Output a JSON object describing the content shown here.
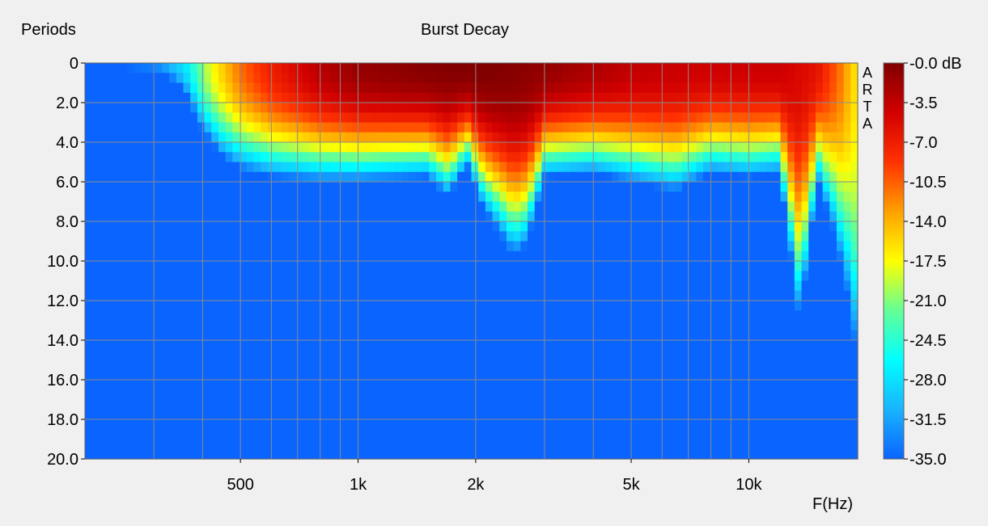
{
  "chart_data": {
    "type": "heatmap",
    "title": "Burst Decay",
    "ylabel": "Periods",
    "xlabel": "F(Hz)",
    "watermark": "ARTA",
    "x_scale": "log",
    "xlim": [
      200,
      19000
    ],
    "ylim": [
      0,
      20
    ],
    "x_ticks": [
      {
        "value": 500,
        "label": "500"
      },
      {
        "value": 1000,
        "label": "1k"
      },
      {
        "value": 2000,
        "label": "2k"
      },
      {
        "value": 5000,
        "label": "5k"
      },
      {
        "value": 10000,
        "label": "10k"
      }
    ],
    "y_ticks": [
      {
        "value": 0,
        "label": "0"
      },
      {
        "value": 2,
        "label": "2.0"
      },
      {
        "value": 4,
        "label": "4.0"
      },
      {
        "value": 6,
        "label": "6.0"
      },
      {
        "value": 8,
        "label": "8.0"
      },
      {
        "value": 10,
        "label": "10.0"
      },
      {
        "value": 12,
        "label": "12.0"
      },
      {
        "value": 14,
        "label": "14.0"
      },
      {
        "value": 16,
        "label": "16.0"
      },
      {
        "value": 18,
        "label": "18.0"
      },
      {
        "value": 20,
        "label": "20.0"
      }
    ],
    "colorbar": {
      "unit": "dB",
      "range": [
        -35.0,
        0.0
      ],
      "labels": [
        "-0.0 dB",
        "-3.5",
        "-7.0",
        "-10.5",
        "-14.0",
        "-17.5",
        "-21.0",
        "-24.5",
        "-28.0",
        "-31.5",
        "-35.0"
      ],
      "colors": [
        "#0a64ff",
        "#19b4ff",
        "#00ffff",
        "#64ff96",
        "#ffff00",
        "#ffa000",
        "#ff3200",
        "#d20000",
        "#800000"
      ]
    },
    "grid": true,
    "peak_db_by_frequency": [
      {
        "f": 200,
        "db": -35.0
      },
      {
        "f": 300,
        "db": -33
      },
      {
        "f": 360,
        "db": -28
      },
      {
        "f": 420,
        "db": -18
      },
      {
        "f": 500,
        "db": -11
      },
      {
        "f": 600,
        "db": -7
      },
      {
        "f": 800,
        "db": -3
      },
      {
        "f": 1000,
        "db": -1.2
      },
      {
        "f": 1500,
        "db": -0.3
      },
      {
        "f": 2200,
        "db": 0
      },
      {
        "f": 3000,
        "db": -1.0
      },
      {
        "f": 5000,
        "db": -3.5
      },
      {
        "f": 8000,
        "db": -4.2
      },
      {
        "f": 12000,
        "db": -4.0
      },
      {
        "f": 15000,
        "db": -6
      },
      {
        "f": 17000,
        "db": -11
      },
      {
        "f": 19000,
        "db": -17
      }
    ],
    "decay_to_floor_periods_by_frequency": [
      {
        "f": 200,
        "periods": 0
      },
      {
        "f": 320,
        "periods": 0.5
      },
      {
        "f": 360,
        "periods": 1.5
      },
      {
        "f": 400,
        "periods": 3.5
      },
      {
        "f": 450,
        "periods": 4.8
      },
      {
        "f": 500,
        "periods": 5.4
      },
      {
        "f": 600,
        "periods": 5.8
      },
      {
        "f": 800,
        "periods": 6.0
      },
      {
        "f": 1000,
        "periods": 6.0
      },
      {
        "f": 1500,
        "periods": 5.8
      },
      {
        "f": 1700,
        "periods": 6.8
      },
      {
        "f": 1900,
        "periods": 5.2
      },
      {
        "f": 2100,
        "periods": 7.5
      },
      {
        "f": 2300,
        "periods": 8.6
      },
      {
        "f": 2500,
        "periods": 9.8
      },
      {
        "f": 2700,
        "periods": 9.2
      },
      {
        "f": 3000,
        "periods": 5.8
      },
      {
        "f": 4000,
        "periods": 5.6
      },
      {
        "f": 5500,
        "periods": 6.2
      },
      {
        "f": 6500,
        "periods": 6.5
      },
      {
        "f": 8000,
        "periods": 5.6
      },
      {
        "f": 10000,
        "periods": 5.8
      },
      {
        "f": 12000,
        "periods": 5.6
      },
      {
        "f": 13500,
        "periods": 13.2
      },
      {
        "f": 15000,
        "periods": 6.0
      },
      {
        "f": 16500,
        "periods": 8.5
      },
      {
        "f": 18000,
        "periods": 12.0
      },
      {
        "f": 19000,
        "periods": 15.5
      }
    ]
  }
}
